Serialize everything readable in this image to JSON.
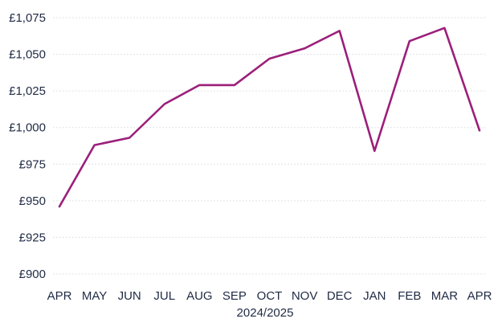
{
  "chart_data": {
    "type": "line",
    "categories": [
      "APR",
      "MAY",
      "JUN",
      "JUL",
      "AUG",
      "SEP",
      "OCT",
      "NOV",
      "DEC",
      "JAN",
      "FEB",
      "MAR",
      "APR"
    ],
    "series": [
      {
        "values": [
          946,
          988,
          993,
          1016,
          1029,
          1029,
          1047,
          1054,
          1066,
          984,
          1059,
          1068,
          998
        ]
      }
    ],
    "xlabel": "2024/2025",
    "ylabel": "",
    "ylim": [
      900,
      1075
    ],
    "yticks": [
      900,
      925,
      950,
      975,
      1000,
      1025,
      1050,
      1075
    ],
    "ytick_labels": [
      "£900",
      "£925",
      "£950",
      "£975",
      "£1,000",
      "£1,025",
      "£1,050",
      "£1,075"
    ],
    "grid": true,
    "colors": {
      "line": "#9c1f7a",
      "text": "#1f2a44",
      "grid": "#dfe3e8"
    }
  }
}
